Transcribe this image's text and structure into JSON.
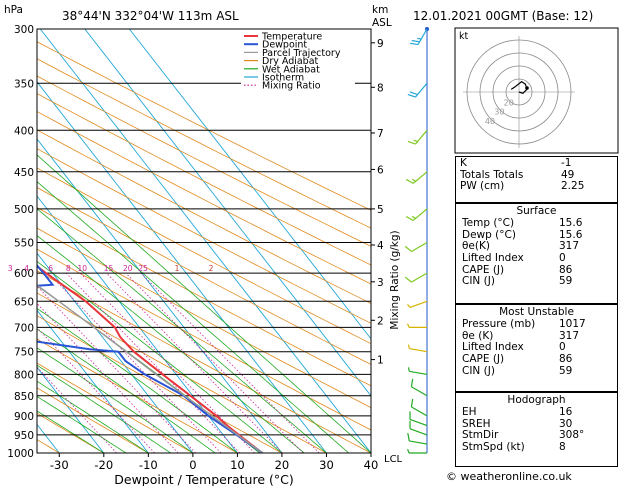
{
  "header": {
    "location": "38°44'N  332°04'W  113m  ASL",
    "datetime": "12.01.2021  00GMT  (Base: 12)"
  },
  "units": {
    "hpa": "hPa",
    "km": "km",
    "asl": "ASL",
    "lcl": "LCL"
  },
  "axes": {
    "xlabel": "Dewpoint / Temperature (°C)",
    "ylabel_right": "Mixing Ratio (g/kg)",
    "x_ticks": [
      "-30",
      "-20",
      "-10",
      "0",
      "10",
      "20",
      "30",
      "40"
    ],
    "p_ticks": [
      "300",
      "350",
      "400",
      "450",
      "500",
      "550",
      "600",
      "650",
      "700",
      "750",
      "800",
      "850",
      "900",
      "950",
      "1000"
    ],
    "km_ticks": [
      "9",
      "8",
      "7",
      "6",
      "5",
      "4",
      "3",
      "2",
      "1"
    ],
    "mixing_ratio_labels": [
      "1",
      "2",
      "3",
      "4",
      "6",
      "8",
      "10",
      "15",
      "20",
      "25"
    ],
    "adiabat_labels": [
      "1",
      "2"
    ]
  },
  "legend": [
    {
      "label": "Temperature",
      "color": "#e8343a"
    },
    {
      "label": "Dewpoint",
      "color": "#2a55d6"
    },
    {
      "label": "Parcel Trajectory",
      "color": "#999999"
    },
    {
      "label": "Dry Adiabat",
      "color": "#e08a1e"
    },
    {
      "label": "Wet Adiabat",
      "color": "#22aa22"
    },
    {
      "label": "Isotherm",
      "color": "#22a7d6"
    },
    {
      "label": "Mixing Ratio",
      "color": "#cc2299"
    }
  ],
  "hodograph": {
    "label": "kt",
    "rings": [
      "40",
      "30",
      "20"
    ]
  },
  "indices": [
    {
      "label": "K",
      "value": "-1"
    },
    {
      "label": "Totals Totals",
      "value": "49"
    },
    {
      "label": "PW (cm)",
      "value": "2.25"
    }
  ],
  "surface": {
    "title": "Surface",
    "rows": [
      {
        "label": "Temp (°C)",
        "value": "15.6"
      },
      {
        "label": "Dewp (°C)",
        "value": "15.6"
      },
      {
        "label": "θe(K)",
        "value": "317"
      },
      {
        "label": "Lifted Index",
        "value": "0"
      },
      {
        "label": "CAPE (J)",
        "value": "86"
      },
      {
        "label": "CIN (J)",
        "value": "59"
      }
    ]
  },
  "most_unstable": {
    "title": "Most Unstable",
    "rows": [
      {
        "label": "Pressure (mb)",
        "value": "1017"
      },
      {
        "label": "θe (K)",
        "value": "317"
      },
      {
        "label": "Lifted Index",
        "value": "0"
      },
      {
        "label": "CAPE (J)",
        "value": "86"
      },
      {
        "label": "CIN (J)",
        "value": "59"
      }
    ]
  },
  "hodograph_table": {
    "title": "Hodograph",
    "rows": [
      {
        "label": "EH",
        "value": "16"
      },
      {
        "label": "SREH",
        "value": "30"
      },
      {
        "label": "StmDir",
        "value": "308°"
      },
      {
        "label": "StmSpd (kt)",
        "value": "8"
      }
    ]
  },
  "credit": "© weatheronline.co.uk",
  "chart_data": {
    "type": "line",
    "title": "38°44'N  332°04'W  113m  ASL",
    "xlabel": "Dewpoint / Temperature (°C)",
    "ylabel": "hPa",
    "xlim": [
      -35,
      40
    ],
    "plim": [
      300,
      1000
    ],
    "series": [
      {
        "name": "Temperature",
        "color": "#e8343a",
        "points": [
          [
            1000,
            15.6
          ],
          [
            950,
            13.5
          ],
          [
            925,
            12.5
          ],
          [
            900,
            11.8
          ],
          [
            850,
            9.5
          ],
          [
            800,
            7
          ],
          [
            750,
            4.5
          ],
          [
            720,
            4
          ],
          [
            700,
            4.5
          ],
          [
            650,
            2.5
          ],
          [
            600,
            -1.5
          ],
          [
            550,
            -5
          ],
          [
            500,
            -9.5
          ],
          [
            450,
            -14.5
          ],
          [
            400,
            -20.5
          ],
          [
            350,
            -28
          ],
          [
            320,
            -32
          ],
          [
            300,
            -35
          ]
        ]
      },
      {
        "name": "Dewpoint",
        "color": "#2a55d6",
        "points": [
          [
            1000,
            15.6
          ],
          [
            950,
            13
          ],
          [
            925,
            11.5
          ],
          [
            900,
            10
          ],
          [
            850,
            8
          ],
          [
            800,
            3
          ],
          [
            770,
            1
          ],
          [
            750,
            1
          ],
          [
            745,
            -5
          ],
          [
            710,
            -28
          ],
          [
            700,
            -27
          ],
          [
            680,
            -25
          ],
          [
            660,
            -30
          ],
          [
            640,
            -25
          ],
          [
            630,
            -22
          ],
          [
            620,
            -2
          ],
          [
            600,
            -2
          ],
          [
            560,
            -2.5
          ],
          [
            545,
            -3
          ],
          [
            540,
            -4
          ],
          [
            530,
            -1
          ],
          [
            500,
            -5
          ],
          [
            470,
            -14
          ],
          [
            450,
            -15
          ],
          [
            420,
            -14
          ],
          [
            400,
            -18
          ],
          [
            380,
            -17
          ],
          [
            360,
            -14
          ],
          [
            350,
            -14.5
          ],
          [
            330,
            -13.5
          ],
          [
            300,
            -16
          ]
        ]
      },
      {
        "name": "Parcel Trajectory",
        "color": "#999999",
        "points": [
          [
            1000,
            15.6
          ],
          [
            950,
            13.2
          ],
          [
            900,
            10.8
          ],
          [
            850,
            8.2
          ],
          [
            800,
            5.5
          ],
          [
            750,
            2.8
          ],
          [
            700,
            -0.2
          ],
          [
            650,
            -3.5
          ],
          [
            600,
            -7.2
          ],
          [
            550,
            -11.5
          ],
          [
            500,
            -16.5
          ],
          [
            450,
            -22.3
          ],
          [
            400,
            -29
          ],
          [
            350,
            -37.5
          ],
          [
            300,
            -47
          ]
        ]
      }
    ],
    "wind_barbs": [
      {
        "p": 1000,
        "dir": 270,
        "kt": 5
      },
      {
        "p": 975,
        "dir": 280,
        "kt": 10
      },
      {
        "p": 950,
        "dir": 290,
        "kt": 10
      },
      {
        "p": 925,
        "dir": 290,
        "kt": 10
      },
      {
        "p": 900,
        "dir": 300,
        "kt": 10
      },
      {
        "p": 850,
        "dir": 300,
        "kt": 10
      },
      {
        "p": 800,
        "dir": 280,
        "kt": 5
      },
      {
        "p": 750,
        "dir": 280,
        "kt": 5
      },
      {
        "p": 700,
        "dir": 270,
        "kt": 5
      },
      {
        "p": 650,
        "dir": 250,
        "kt": 5
      },
      {
        "p": 600,
        "dir": 240,
        "kt": 10
      },
      {
        "p": 550,
        "dir": 240,
        "kt": 10
      },
      {
        "p": 500,
        "dir": 230,
        "kt": 15
      },
      {
        "p": 450,
        "dir": 230,
        "kt": 15
      },
      {
        "p": 400,
        "dir": 220,
        "kt": 15
      },
      {
        "p": 350,
        "dir": 220,
        "kt": 20
      },
      {
        "p": 300,
        "dir": 210,
        "kt": 25
      }
    ],
    "hodograph_points": [
      [
        0,
        0
      ],
      [
        3,
        -1
      ],
      [
        6,
        2
      ],
      [
        5,
        6
      ],
      [
        2,
        8
      ],
      [
        -3,
        4
      ],
      [
        -6,
        2
      ]
    ]
  }
}
